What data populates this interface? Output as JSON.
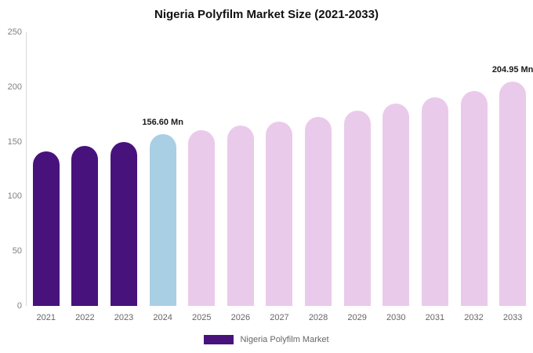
{
  "title": "Nigeria Polyfilm Market Size (2021-2033)",
  "legend": {
    "label": "Nigeria Polyfilm Market"
  },
  "colors": {
    "dark_purple": "#48127D",
    "light_blue": "#A9CFE5",
    "light_pink": "#EACAEA",
    "axis_text": "#808080",
    "annotation_text": "#1a1a1a"
  },
  "chart_data": {
    "type": "bar",
    "title": "Nigeria Polyfilm Market Size (2021-2033)",
    "categories": [
      "2021",
      "2022",
      "2023",
      "2024",
      "2025",
      "2026",
      "2027",
      "2028",
      "2029",
      "2030",
      "2031",
      "2032",
      "2033"
    ],
    "values": [
      141,
      146,
      150,
      156.6,
      160.5,
      164.5,
      168.5,
      173,
      178.5,
      185,
      190.5,
      196.5,
      204.95
    ],
    "bar_colors": [
      "#48127D",
      "#48127D",
      "#48127D",
      "#A9CFE5",
      "#EACAEA",
      "#EACAEA",
      "#EACAEA",
      "#EACAEA",
      "#EACAEA",
      "#EACAEA",
      "#EACAEA",
      "#EACAEA",
      "#EACAEA"
    ],
    "xlabel": "",
    "ylabel": "",
    "ylim": [
      0,
      250
    ],
    "yticks": [
      0,
      50,
      100,
      150,
      200,
      250
    ],
    "grid": false,
    "legend_entries": [
      "Nigeria Polyfilm Market"
    ],
    "legend_position": "bottom",
    "annotations": [
      {
        "index": 3,
        "text": "156.60 Mn"
      },
      {
        "index": 12,
        "text": "204.95 Mn"
      }
    ]
  }
}
